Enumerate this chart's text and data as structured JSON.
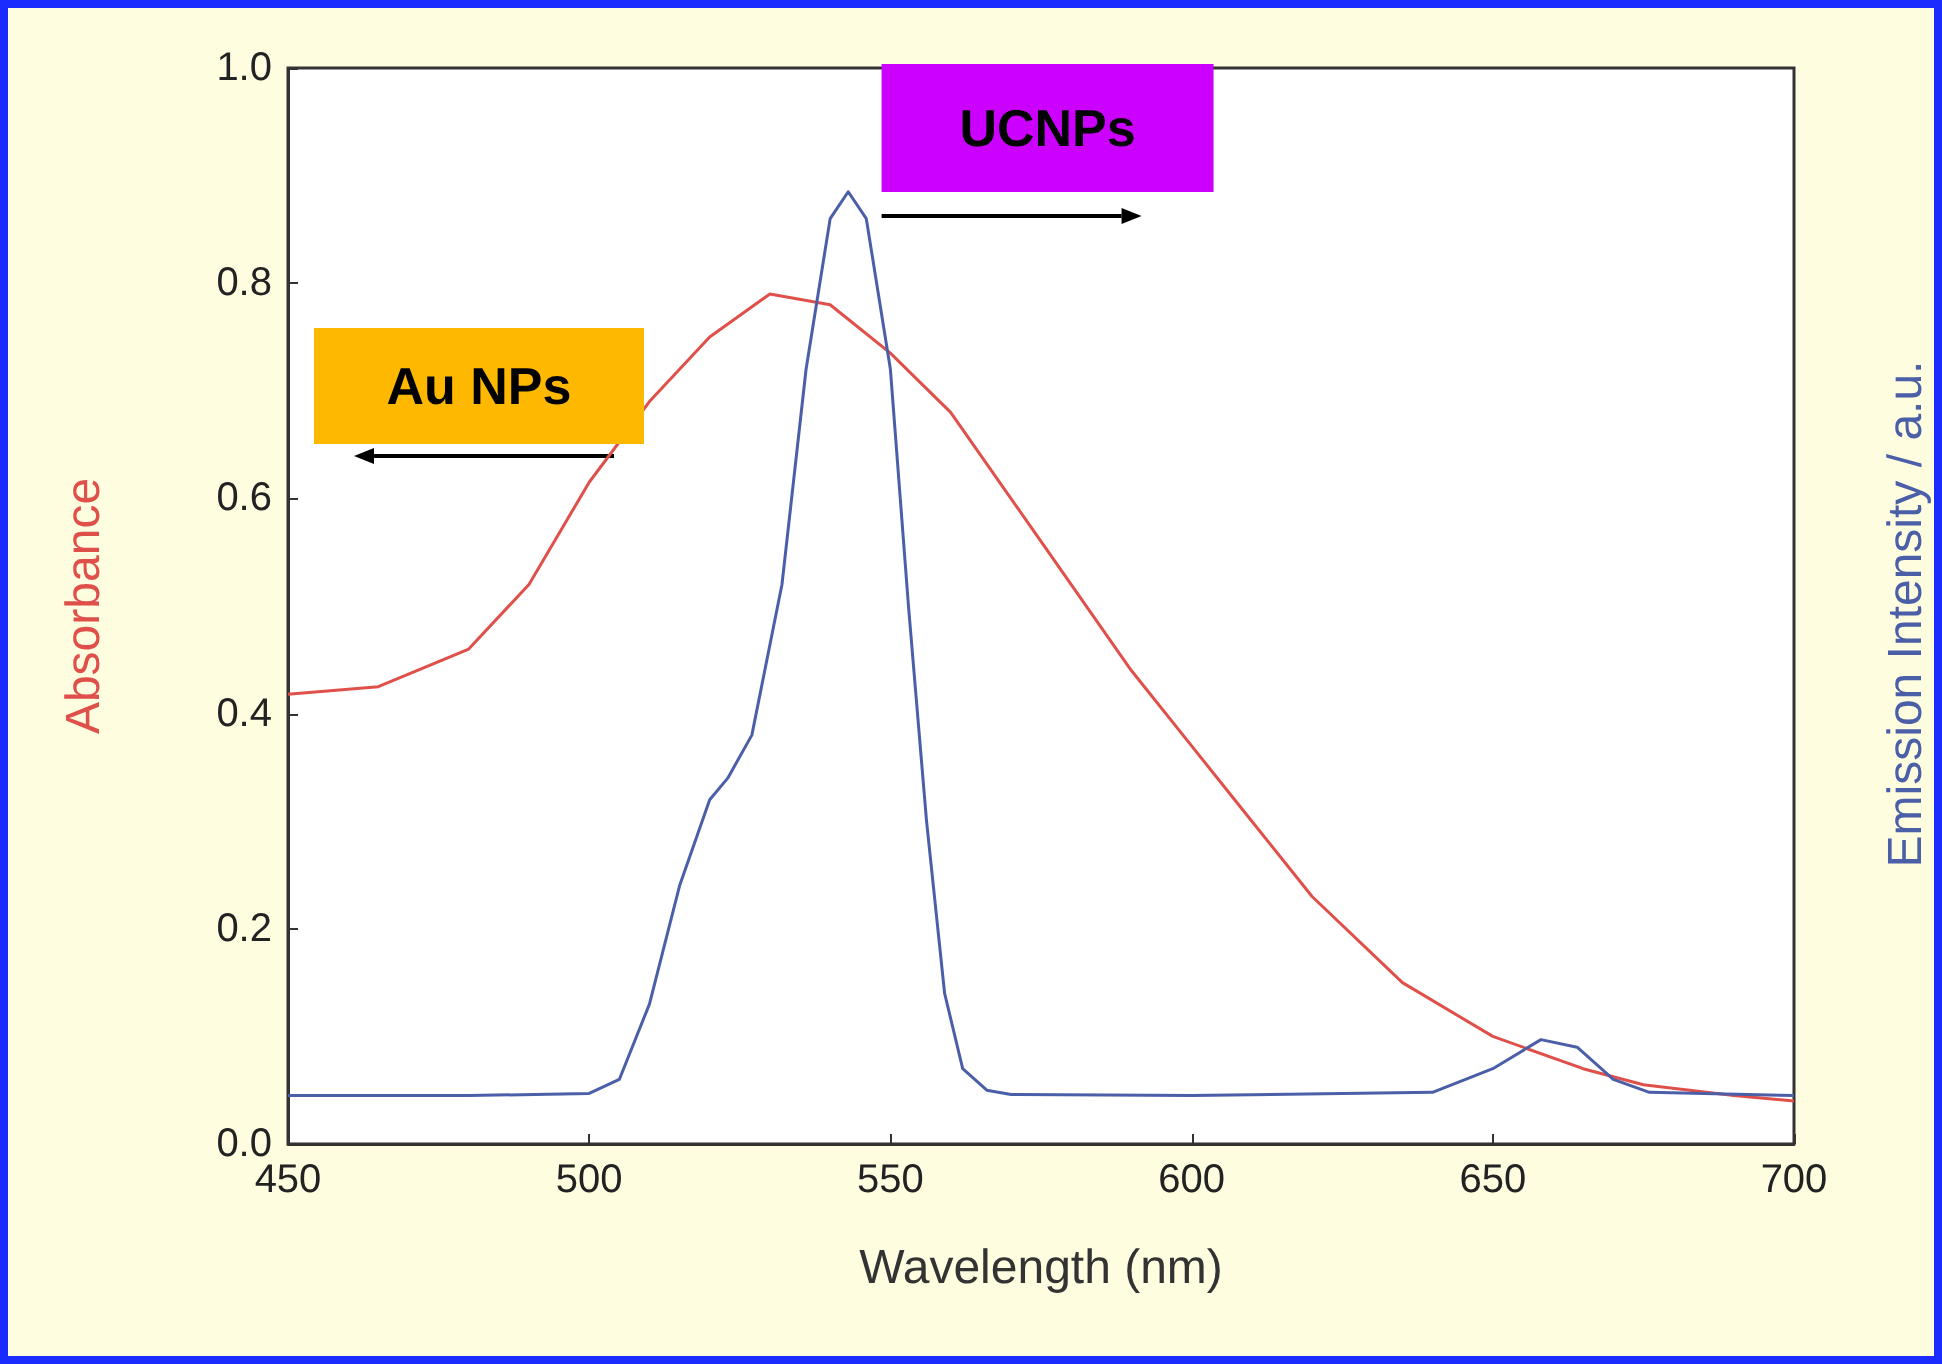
{
  "chart_data": {
    "type": "line",
    "xlabel": "Wavelength (nm)",
    "ylabel": "Absorbance",
    "y2label": "Emission Intensity / a.u.",
    "xlim": [
      450,
      700
    ],
    "xticks": [
      450,
      500,
      550,
      600,
      650,
      700
    ],
    "ylim": [
      0,
      1
    ],
    "yticks": [
      {
        "value": 0,
        "label": "0.0"
      },
      {
        "value": 0.2,
        "label": "0.2"
      },
      {
        "value": 0.4,
        "label": "0.4"
      },
      {
        "value": 0.6,
        "label": "0.6"
      },
      {
        "value": 0.8,
        "label": "0.8"
      },
      {
        "value": 1,
        "label": "1.0"
      }
    ],
    "grid": false,
    "marker": "none",
    "line_style": "solid",
    "annotations": [
      "UCNPs",
      "Au NPs"
    ],
    "series": [
      {
        "color": "#e0504a",
        "x": [
          450,
          465,
          480,
          490,
          500,
          510,
          520,
          530,
          540,
          550,
          560,
          575,
          590,
          600,
          610,
          620,
          635,
          650,
          665,
          675,
          690,
          700
        ],
        "values": [
          0.418,
          0.425,
          0.46,
          0.52,
          0.615,
          0.69,
          0.75,
          0.79,
          0.78,
          0.735,
          0.68,
          0.56,
          0.44,
          0.37,
          0.3,
          0.23,
          0.15,
          0.1,
          0.07,
          0.055,
          0.045,
          0.04
        ]
      },
      {
        "color": "#4a5fa8",
        "x": [
          450,
          480,
          500,
          505,
          510,
          515,
          520,
          523,
          527,
          532,
          536,
          540,
          543,
          546,
          550,
          553,
          556,
          559,
          562,
          566,
          570,
          600,
          640,
          650,
          658,
          664,
          670,
          676,
          700
        ],
        "values": [
          0.045,
          0.045,
          0.047,
          0.06,
          0.13,
          0.24,
          0.32,
          0.34,
          0.38,
          0.52,
          0.72,
          0.86,
          0.885,
          0.86,
          0.72,
          0.5,
          0.3,
          0.14,
          0.07,
          0.05,
          0.046,
          0.045,
          0.048,
          0.07,
          0.097,
          0.09,
          0.06,
          0.048,
          0.045
        ]
      }
    ]
  }
}
